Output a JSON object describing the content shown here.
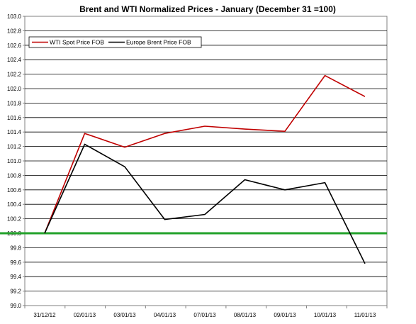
{
  "chart_data": {
    "type": "line",
    "title": "Brent and WTI Normalized Prices  -   January (December 31 =100)",
    "xlabel": "",
    "ylabel": "",
    "categories": [
      "31/12/12",
      "02/01/13",
      "03/01/13",
      "04/01/13",
      "07/01/13",
      "08/01/13",
      "09/01/13",
      "10/01/13",
      "11/01/13"
    ],
    "ylim": [
      99.0,
      103.0
    ],
    "yticks": [
      "99.0",
      "99.2",
      "99.4",
      "99.6",
      "99.8",
      "100.0",
      "100.2",
      "100.4",
      "100.6",
      "100.8",
      "101.0",
      "101.2",
      "101.4",
      "101.6",
      "101.8",
      "102.0",
      "102.2",
      "102.4",
      "102.6",
      "102.8",
      "103.0"
    ],
    "grid": "horizontal",
    "legend_position": "top-left",
    "series": [
      {
        "name": "WTI Spot Price FOB",
        "color": "#c00000",
        "values": [
          100.0,
          101.38,
          101.19,
          101.38,
          101.48,
          101.44,
          101.41,
          102.18,
          101.89
        ]
      },
      {
        "name": "Europe Brent Price FOB",
        "color": "#000000",
        "values": [
          100.0,
          101.23,
          100.92,
          100.19,
          100.26,
          100.74,
          100.6,
          100.7,
          99.58
        ]
      }
    ],
    "reference_line": {
      "value": 100.0,
      "color": "#22a22a"
    }
  }
}
